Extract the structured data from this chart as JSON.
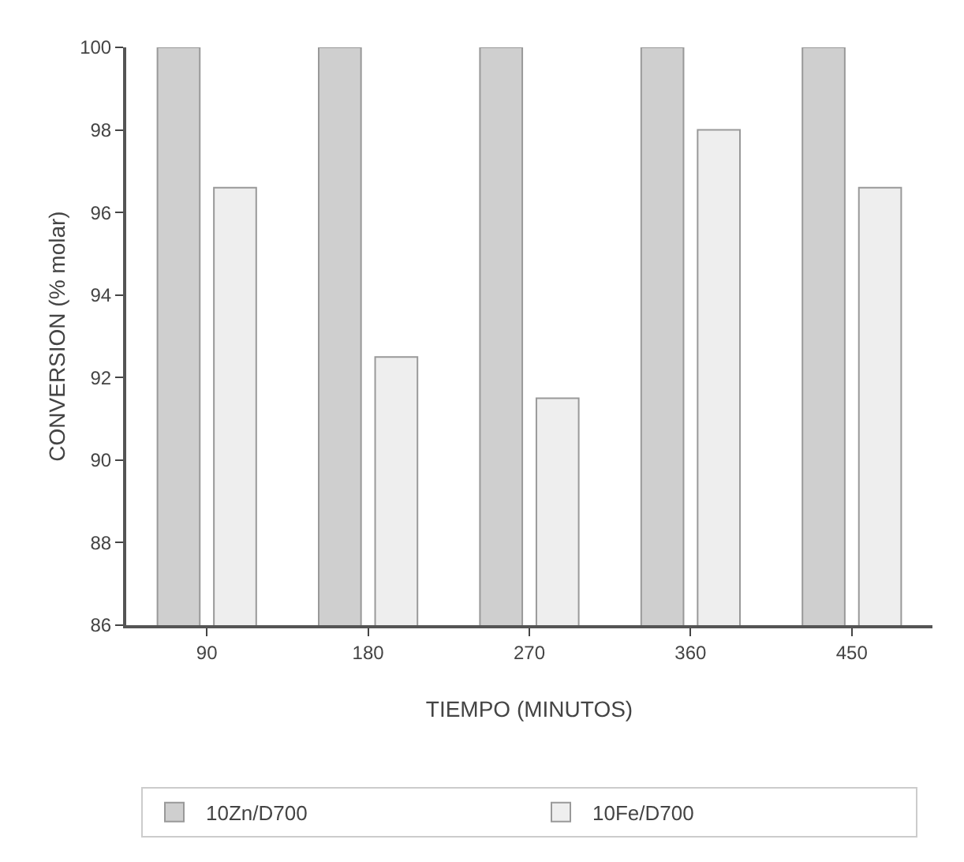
{
  "chart_data": {
    "type": "bar",
    "xlabel": "TIEMPO (MINUTOS)",
    "ylabel": "CONVERSION (% molar)",
    "categories": [
      "90",
      "180",
      "270",
      "360",
      "450"
    ],
    "series": [
      {
        "name": "10Zn/D700",
        "color": "#cfcfcf",
        "values": [
          100,
          100,
          100,
          100,
          100
        ]
      },
      {
        "name": "10Fe/D700",
        "color": "#eeeeee",
        "values": [
          96.6,
          92.5,
          91.5,
          98,
          96.6
        ]
      }
    ],
    "ylim": [
      86,
      100
    ],
    "yticks": [
      86,
      88,
      90,
      92,
      94,
      96,
      98,
      100
    ],
    "grid": false,
    "legend": "bottom"
  }
}
